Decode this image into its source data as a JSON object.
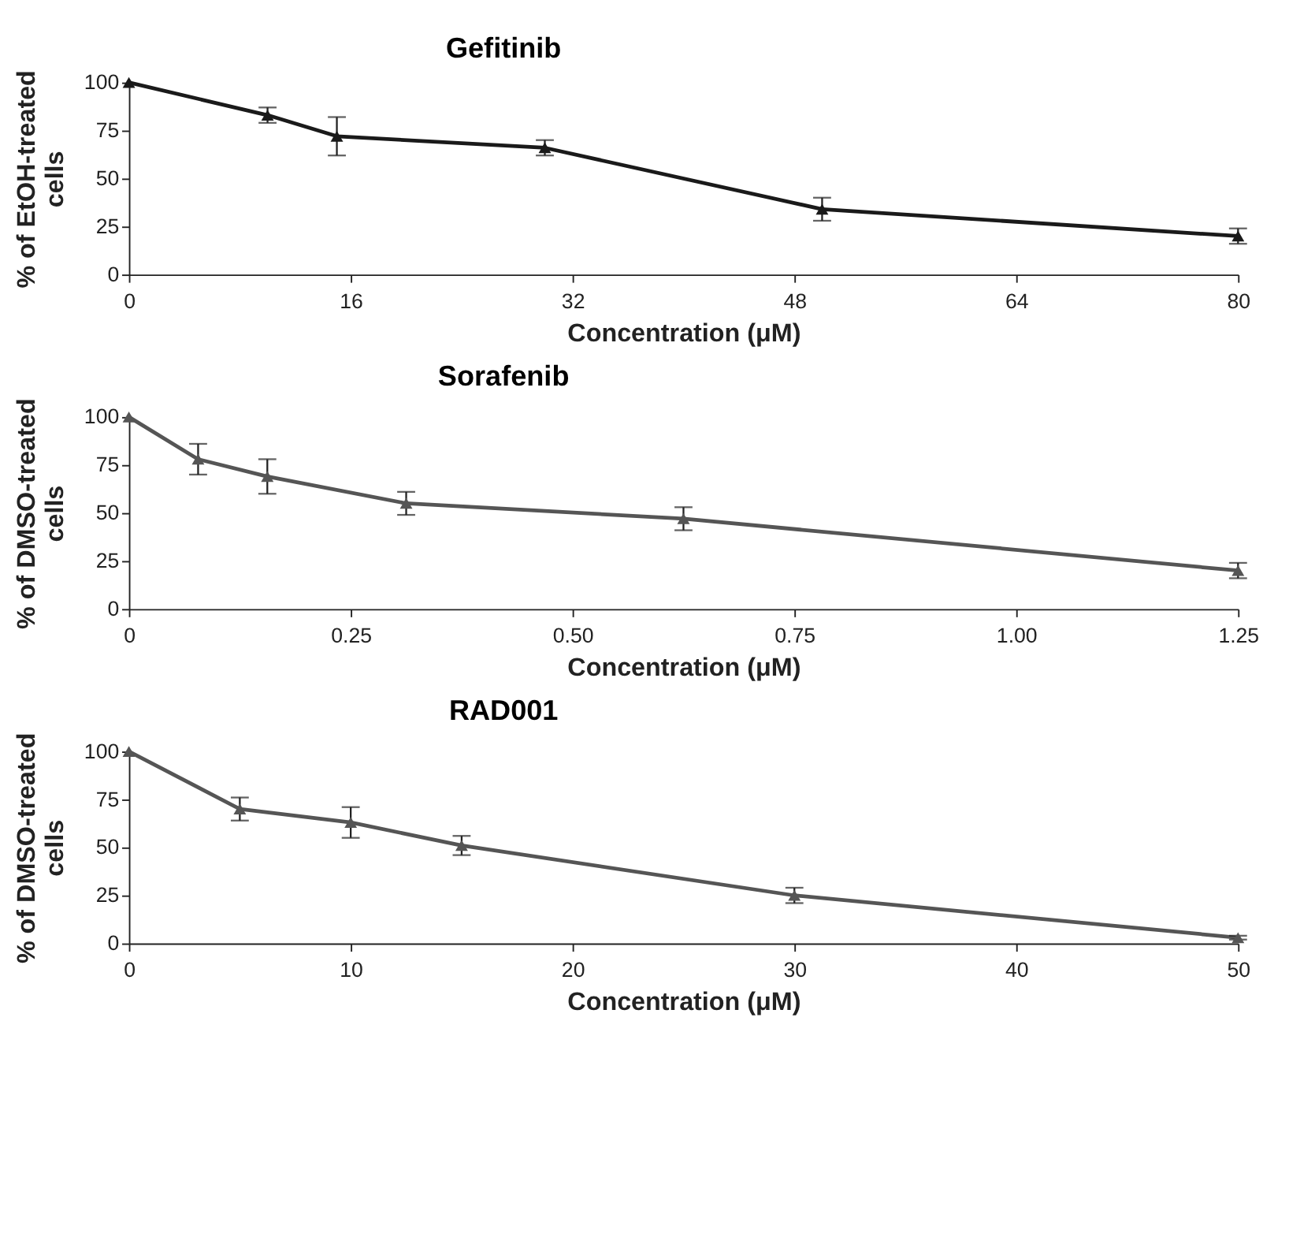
{
  "chart_data": [
    {
      "type": "line",
      "title": "Gefitinib",
      "xlabel": "Concentration (μM)",
      "ylabel": "% of EtOH-treated cells",
      "x": [
        0,
        10,
        15,
        30,
        50,
        80
      ],
      "series": [
        {
          "color": "#1a1a1a",
          "values": [
            100,
            83,
            72,
            66,
            34,
            20
          ],
          "errors": [
            null,
            4,
            10,
            4,
            6,
            4
          ]
        }
      ],
      "xlim": [
        0,
        80
      ],
      "xticks": [
        0,
        16,
        32,
        48,
        64,
        80
      ],
      "ylim": [
        0,
        100
      ],
      "yticks": [
        0,
        25,
        50,
        75,
        100
      ],
      "marker": "triangle",
      "line_style": "solid"
    },
    {
      "type": "line",
      "title": "Sorafenib",
      "xlabel": "Concentration (μM)",
      "ylabel": "% of DMSO-treated cells",
      "x": [
        0,
        0.078,
        0.156,
        0.3125,
        0.625,
        1.25
      ],
      "series": [
        {
          "color": "#555555",
          "values": [
            100,
            78,
            69,
            55,
            47,
            20
          ],
          "errors": [
            null,
            8,
            9,
            6,
            6,
            4
          ]
        }
      ],
      "xlim": [
        0,
        1.25
      ],
      "xticks": [
        0,
        0.25,
        {
          "value": 0.5,
          "label": "0.50"
        },
        0.75,
        {
          "value": 1,
          "label": "1.00"
        },
        1.25
      ],
      "ylim": [
        0,
        100
      ],
      "yticks": [
        0,
        25,
        50,
        75,
        100
      ],
      "marker": "triangle",
      "line_style": "solid"
    },
    {
      "type": "line",
      "title": "RAD001",
      "xlabel": "Concentration (μM)",
      "ylabel": "% of DMSO-treated cells",
      "x": [
        0,
        5,
        10,
        15,
        30,
        50
      ],
      "series": [
        {
          "color": "#555555",
          "values": [
            100,
            70,
            63,
            51,
            25,
            3
          ],
          "errors": [
            null,
            6,
            8,
            5,
            4,
            1
          ]
        }
      ],
      "xlim": [
        0,
        50
      ],
      "xticks": [
        0,
        10,
        20,
        30,
        40,
        50
      ],
      "ylim": [
        0,
        100
      ],
      "yticks": [
        0,
        25,
        50,
        75,
        100
      ],
      "marker": "triangle",
      "line_style": "solid"
    }
  ]
}
